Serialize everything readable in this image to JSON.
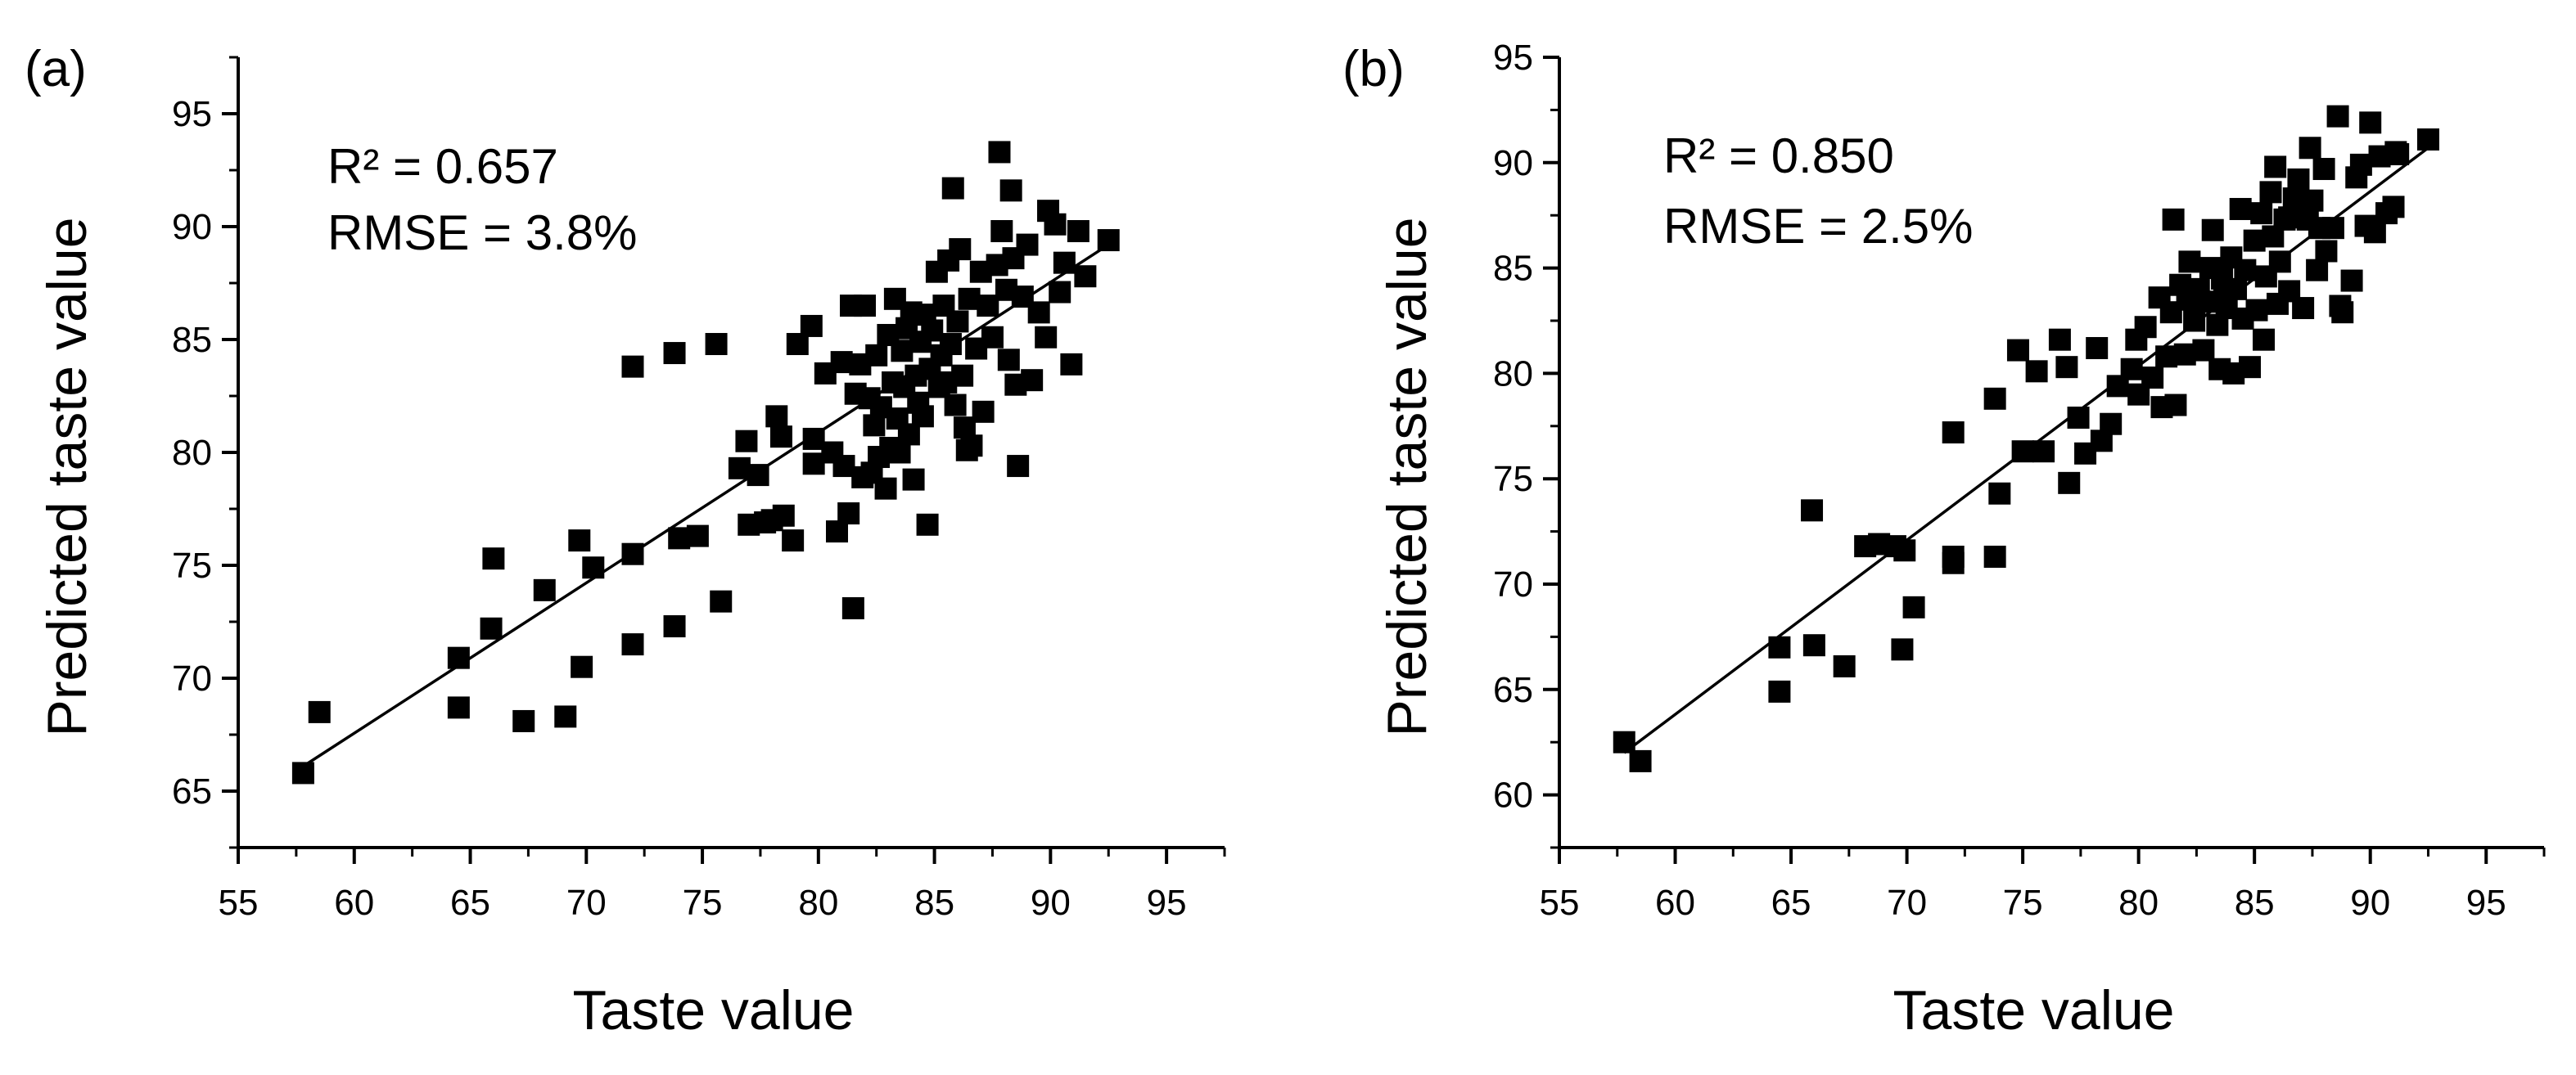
{
  "chart_data": [
    {
      "type": "scatter",
      "panel_label": "(a)",
      "xlabel": "Taste value",
      "ylabel": "Predicted taste value",
      "xlim": [
        55,
        97.5
      ],
      "ylim": [
        62.5,
        97.5
      ],
      "xticks": [
        55,
        60,
        65,
        70,
        75,
        80,
        85,
        90,
        95
      ],
      "yticks": [
        65,
        70,
        75,
        80,
        85,
        90,
        95
      ],
      "annotations": [
        "R² = 0.657",
        "RMSE = 3.8%"
      ],
      "fit_line": {
        "x": [
          57.8,
          92.5
        ],
        "y": [
          66.1,
          89.2
        ]
      },
      "points": [
        [
          57.8,
          65.8
        ],
        [
          58.5,
          68.5
        ],
        [
          64.5,
          70.9
        ],
        [
          64.5,
          68.7
        ],
        [
          65.9,
          72.2
        ],
        [
          66,
          75.3
        ],
        [
          67.3,
          68.1
        ],
        [
          68.2,
          73.9
        ],
        [
          69.1,
          68.3
        ],
        [
          69.7,
          76.1
        ],
        [
          69.8,
          70.5
        ],
        [
          70.3,
          74.9
        ],
        [
          72,
          83.8
        ],
        [
          72,
          75.5
        ],
        [
          72,
          71.5
        ],
        [
          73.8,
          72.3
        ],
        [
          73.8,
          84.4
        ],
        [
          74,
          76.2
        ],
        [
          74.8,
          76.3
        ],
        [
          75.6,
          84.8
        ],
        [
          75.8,
          73.4
        ],
        [
          76.6,
          79.3
        ],
        [
          76.9,
          80.5
        ],
        [
          77,
          76.8
        ],
        [
          77.4,
          79
        ],
        [
          77.7,
          76.9
        ],
        [
          78,
          77
        ],
        [
          78.2,
          81.6
        ],
        [
          78.4,
          80.7
        ],
        [
          78.5,
          77.2
        ],
        [
          78.9,
          76.1
        ],
        [
          79.1,
          84.8
        ],
        [
          79.7,
          85.6
        ],
        [
          79.8,
          80.6
        ],
        [
          79.8,
          79.5
        ],
        [
          80.3,
          83.5
        ],
        [
          80.6,
          80
        ],
        [
          80.8,
          76.5
        ],
        [
          81,
          84
        ],
        [
          81.1,
          79.4
        ],
        [
          81.3,
          77.3
        ],
        [
          81.4,
          86.5
        ],
        [
          81.5,
          73.1
        ],
        [
          81.6,
          82.6
        ],
        [
          81.8,
          83.9
        ],
        [
          81.9,
          78.9
        ],
        [
          82,
          86.5
        ],
        [
          82.2,
          82.4
        ],
        [
          82.3,
          79.1
        ],
        [
          82.4,
          81.2
        ],
        [
          82.5,
          84.3
        ],
        [
          82.6,
          79.8
        ],
        [
          82.7,
          82
        ],
        [
          82.9,
          78.4
        ],
        [
          83,
          85.2
        ],
        [
          83.1,
          80.2
        ],
        [
          83.2,
          83.1
        ],
        [
          83.3,
          86.8
        ],
        [
          83.4,
          81.5
        ],
        [
          83.5,
          80
        ],
        [
          83.6,
          84.5
        ],
        [
          83.7,
          82.9
        ],
        [
          83.8,
          85.5
        ],
        [
          83.9,
          80.8
        ],
        [
          84,
          86.2
        ],
        [
          84.1,
          78.8
        ],
        [
          84.2,
          83.4
        ],
        [
          84.3,
          82.2
        ],
        [
          84.4,
          84.9
        ],
        [
          84.5,
          81.6
        ],
        [
          84.6,
          86.1
        ],
        [
          84.7,
          76.8
        ],
        [
          84.8,
          83.7
        ],
        [
          84.9,
          85.4
        ],
        [
          85.1,
          88
        ],
        [
          85.2,
          82.9
        ],
        [
          85.3,
          84.3
        ],
        [
          85.4,
          86.5
        ],
        [
          85.5,
          83.1
        ],
        [
          85.6,
          88.5
        ],
        [
          85.7,
          84.8
        ],
        [
          85.8,
          91.7
        ],
        [
          85.9,
          82.1
        ],
        [
          86,
          85.8
        ],
        [
          86.1,
          89
        ],
        [
          86.2,
          83.4
        ],
        [
          86.3,
          81.1
        ],
        [
          86.4,
          80.1
        ],
        [
          86.5,
          86.8
        ],
        [
          86.6,
          80.3
        ],
        [
          86.8,
          84.6
        ],
        [
          87,
          88
        ],
        [
          87.1,
          81.8
        ],
        [
          87.3,
          86.5
        ],
        [
          87.5,
          85.1
        ],
        [
          87.7,
          88.3
        ],
        [
          87.8,
          93.3
        ],
        [
          87.9,
          89.8
        ],
        [
          88.1,
          87.2
        ],
        [
          88.2,
          84.1
        ],
        [
          88.3,
          91.6
        ],
        [
          88.4,
          88.6
        ],
        [
          88.5,
          83
        ],
        [
          88.6,
          79.4
        ],
        [
          88.8,
          86.9
        ],
        [
          89,
          89.2
        ],
        [
          89.2,
          83.2
        ],
        [
          89.5,
          86.2
        ],
        [
          89.8,
          85.1
        ],
        [
          89.9,
          90.7
        ],
        [
          90.2,
          90.1
        ],
        [
          90.4,
          87.1
        ],
        [
          90.6,
          88.4
        ],
        [
          90.9,
          83.9
        ],
        [
          91.2,
          89.8
        ],
        [
          92.5,
          89.4
        ],
        [
          91.5,
          87.8
        ]
      ]
    },
    {
      "type": "scatter",
      "panel_label": "(b)",
      "xlabel": "Taste value",
      "ylabel": "Predicted taste value",
      "xlim": [
        55,
        97.5
      ],
      "ylim": [
        57.5,
        95
      ],
      "xticks": [
        55,
        60,
        65,
        70,
        75,
        80,
        85,
        90,
        95
      ],
      "yticks": [
        60,
        65,
        70,
        75,
        80,
        85,
        90,
        95
      ],
      "annotations": [
        "R² = 0.850",
        "RMSE = 2.5%"
      ],
      "fit_line": {
        "x": [
          57.8,
          92.5
        ],
        "y": [
          62,
          90.7
        ]
      },
      "points": [
        [
          57.8,
          62.5
        ],
        [
          58.5,
          61.6
        ],
        [
          64.5,
          67
        ],
        [
          64.5,
          64.9
        ],
        [
          65.9,
          73.5
        ],
        [
          66,
          67.1
        ],
        [
          67.3,
          66.1
        ],
        [
          68.2,
          71.8
        ],
        [
          68.8,
          71.9
        ],
        [
          69.5,
          71.8
        ],
        [
          69.8,
          66.9
        ],
        [
          69.9,
          71.6
        ],
        [
          70.3,
          68.9
        ],
        [
          72,
          77.2
        ],
        [
          72,
          71.3
        ],
        [
          72,
          71
        ],
        [
          73.8,
          71.3
        ],
        [
          73.8,
          78.8
        ],
        [
          74,
          74.3
        ],
        [
          74.8,
          81.1
        ],
        [
          75,
          76.3
        ],
        [
          75.6,
          80.1
        ],
        [
          75.9,
          76.3
        ],
        [
          76.6,
          81.6
        ],
        [
          76.9,
          80.3
        ],
        [
          77,
          74.8
        ],
        [
          77.4,
          77.9
        ],
        [
          77.7,
          76.2
        ],
        [
          78.2,
          81.2
        ],
        [
          78.4,
          76.8
        ],
        [
          78.8,
          77.6
        ],
        [
          79.1,
          79.4
        ],
        [
          79.7,
          80.2
        ],
        [
          79.9,
          81.6
        ],
        [
          80,
          79
        ],
        [
          80.3,
          82.2
        ],
        [
          80.6,
          79.8
        ],
        [
          80.9,
          83.6
        ],
        [
          81,
          78.4
        ],
        [
          81.2,
          80.8
        ],
        [
          81.4,
          82.9
        ],
        [
          81.5,
          87.3
        ],
        [
          81.6,
          78.5
        ],
        [
          81.8,
          84.2
        ],
        [
          82,
          80.9
        ],
        [
          82.1,
          83.5
        ],
        [
          82.2,
          85.3
        ],
        [
          82.4,
          82.5
        ],
        [
          82.6,
          84
        ],
        [
          82.8,
          81.1
        ],
        [
          83,
          83.4
        ],
        [
          83.1,
          85
        ],
        [
          83.2,
          86.8
        ],
        [
          83.4,
          82.3
        ],
        [
          83.5,
          80.2
        ],
        [
          83.6,
          84.5
        ],
        [
          83.8,
          83.1
        ],
        [
          84,
          85.5
        ],
        [
          84.1,
          80
        ],
        [
          84.2,
          84
        ],
        [
          84.4,
          87.8
        ],
        [
          84.5,
          82.6
        ],
        [
          84.6,
          84.9
        ],
        [
          84.8,
          80.3
        ],
        [
          85,
          86.3
        ],
        [
          85.1,
          83
        ],
        [
          85.3,
          87.6
        ],
        [
          85.4,
          81.6
        ],
        [
          85.5,
          84.6
        ],
        [
          85.7,
          88.6
        ],
        [
          85.8,
          86.5
        ],
        [
          85.9,
          89.8
        ],
        [
          86,
          83.3
        ],
        [
          86.1,
          85.3
        ],
        [
          86.3,
          87.3
        ],
        [
          86.5,
          83.9
        ],
        [
          86.7,
          88.3
        ],
        [
          86.9,
          89.2
        ],
        [
          87.1,
          83.1
        ],
        [
          87.3,
          87.3
        ],
        [
          87.4,
          90.7
        ],
        [
          87.5,
          88.2
        ],
        [
          87.7,
          84.9
        ],
        [
          87.8,
          86.9
        ],
        [
          88,
          89.7
        ],
        [
          88.1,
          85.8
        ],
        [
          88.4,
          86.9
        ],
        [
          88.6,
          92.2
        ],
        [
          88.7,
          83.2
        ],
        [
          88.8,
          82.9
        ],
        [
          89.2,
          84.4
        ],
        [
          89.4,
          89.3
        ],
        [
          89.6,
          89.9
        ],
        [
          89.8,
          87
        ],
        [
          90,
          91.9
        ],
        [
          90.2,
          86.7
        ],
        [
          90.4,
          90.3
        ],
        [
          90.7,
          87.6
        ],
        [
          91,
          87.9
        ],
        [
          91.2,
          90.4
        ],
        [
          92.5,
          91.1
        ],
        [
          91.1,
          90.5
        ],
        [
          86.5,
          87.4
        ],
        [
          83.7,
          83.6
        ]
      ]
    }
  ]
}
